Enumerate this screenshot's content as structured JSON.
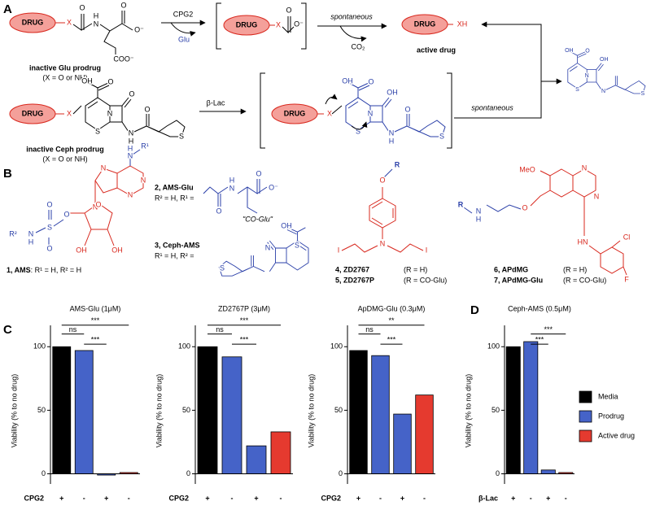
{
  "panel_a": {
    "label": "A",
    "drug": "DRUG",
    "x": "X",
    "xh": "XH",
    "o": "O",
    "o_minus": "O⁻",
    "coo_minus": "COO⁻",
    "h": "H",
    "n": "N",
    "oh": "OH",
    "s": "S",
    "cpg2": "CPG2",
    "glu": "Glu",
    "spontaneous": "spontaneous",
    "co2": "CO₂",
    "active_drug": "active drug",
    "glu_prodrug": "inactive Glu prodrug",
    "ceph_prodrug": "inactive Ceph prodrug",
    "x_note": "(X = O or NH)",
    "beta_lac": "β-Lac"
  },
  "panel_b": {
    "label": "B",
    "r1": "R¹",
    "r2": "R²",
    "n": "N",
    "h": "H",
    "o": "O",
    "oh": "OH",
    "s": "S",
    "i": "I",
    "r": "R",
    "meo": "MeO",
    "hn": "HN",
    "cl": "Cl",
    "f": "F",
    "o_minus": "O⁻",
    "co_glu": "\"CO-Glu\"",
    "compounds": [
      {
        "name": "1, AMS",
        "def": ": R¹ = H, R² = H"
      },
      {
        "name": "2, AMS-Glu",
        "def": "R² = H, R¹ ="
      },
      {
        "name": "3, Ceph-AMS",
        "def": "R¹ = H, R² ="
      },
      {
        "name": "4, ZD2767",
        "def": "(R = H)"
      },
      {
        "name": "5, ZD2767P",
        "def": "(R = CO-Glu)"
      },
      {
        "name": "6, APdMG",
        "def": "(R = H)"
      },
      {
        "name": "7, APdMG-Glu",
        "def": "(R = CO-Glu)"
      }
    ]
  },
  "panel_c": {
    "label": "C"
  },
  "panel_d": {
    "label": "D"
  },
  "chart_data": [
    {
      "type": "bar",
      "title": "AMS-Glu (1μM)",
      "ylabel": "Viability (% to no drug)",
      "xlabel": "CPG2",
      "categories": [
        "+",
        "-",
        "+",
        "-"
      ],
      "values": [
        100,
        97,
        -1,
        1
      ],
      "colors": [
        "#000000",
        "#4563c8",
        "#4563c8",
        "#e53a2f"
      ],
      "ylim": [
        -8,
        120
      ],
      "yticks": [
        0,
        50,
        100
      ],
      "significance": [
        {
          "from": 0,
          "to": 1,
          "text": "ns"
        },
        {
          "from": 1,
          "to": 2,
          "text": "***"
        },
        {
          "from": 0,
          "to": 3,
          "text": "***"
        }
      ]
    },
    {
      "type": "bar",
      "title": "ZD2767P (3μM)",
      "ylabel": "Viability (% to no drug)",
      "xlabel": "CPG2",
      "categories": [
        "+",
        "-",
        "+",
        "-"
      ],
      "values": [
        100,
        92,
        22,
        33
      ],
      "colors": [
        "#000000",
        "#4563c8",
        "#4563c8",
        "#e53a2f"
      ],
      "ylim": [
        -8,
        120
      ],
      "yticks": [
        0,
        50,
        100
      ],
      "significance": [
        {
          "from": 0,
          "to": 1,
          "text": "ns"
        },
        {
          "from": 1,
          "to": 2,
          "text": "***"
        },
        {
          "from": 0,
          "to": 3,
          "text": "***"
        }
      ]
    },
    {
      "type": "bar",
      "title": "ApDMG-Glu (0.3μM)",
      "ylabel": "Viability (% to no drug)",
      "xlabel": "CPG2",
      "categories": [
        "+",
        "-",
        "+",
        "-"
      ],
      "values": [
        97,
        93,
        47,
        62
      ],
      "colors": [
        "#000000",
        "#4563c8",
        "#4563c8",
        "#e53a2f"
      ],
      "ylim": [
        -8,
        120
      ],
      "yticks": [
        0,
        50,
        100
      ],
      "significance": [
        {
          "from": 0,
          "to": 1,
          "text": "ns"
        },
        {
          "from": 1,
          "to": 2,
          "text": "***"
        },
        {
          "from": 0,
          "to": 3,
          "text": "**"
        }
      ]
    },
    {
      "type": "bar",
      "title": "Ceph-AMS (0.5μM)",
      "ylabel": "Viability (% to no drug)",
      "xlabel": "β-Lac",
      "categories": [
        "+",
        "-",
        "+",
        "-"
      ],
      "values": [
        100,
        104,
        3,
        1
      ],
      "colors": [
        "#000000",
        "#4563c8",
        "#4563c8",
        "#e53a2f"
      ],
      "ylim": [
        -8,
        120
      ],
      "yticks": [
        0,
        50,
        100
      ],
      "significance": [
        {
          "from": 1,
          "to": 3,
          "text": "***"
        },
        {
          "from": 1,
          "to": 2,
          "text": "***"
        }
      ],
      "legend": [
        {
          "name": "Media",
          "color": "#000000"
        },
        {
          "name": "Prodrug",
          "color": "#4563c8"
        },
        {
          "name": "Active drug",
          "color": "#e53a2f"
        }
      ]
    }
  ]
}
